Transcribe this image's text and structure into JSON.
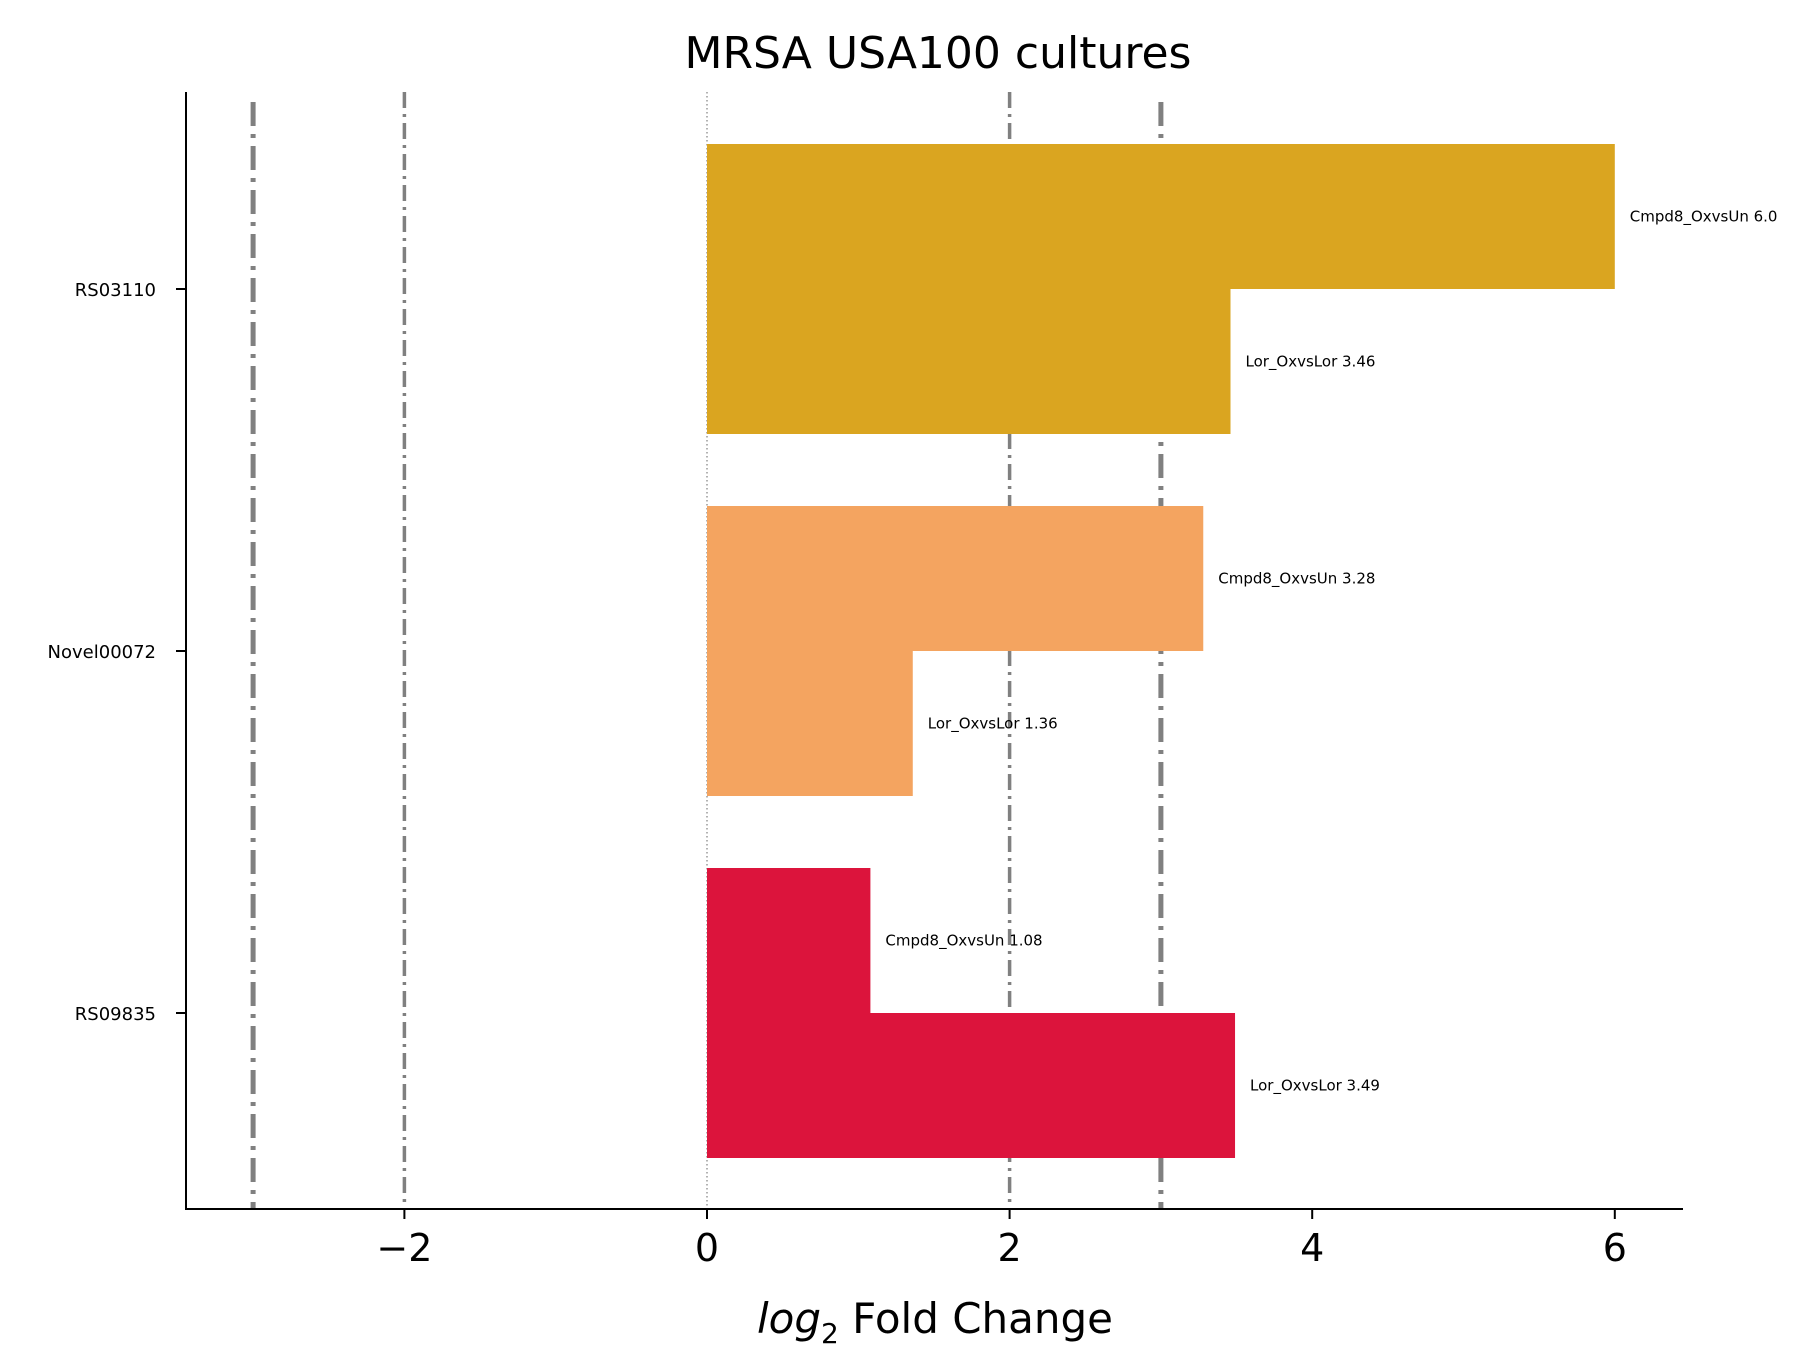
{
  "chart_data": {
    "type": "bar",
    "orientation": "horizontal",
    "title": "MRSA USA100 cultures",
    "xlabel_italic": "log",
    "xlabel_sub": "2",
    "xlabel_rest": " Fold Change",
    "xlim": [
      -3.4,
      6.45
    ],
    "xticks": [
      -2,
      0,
      2,
      4,
      6
    ],
    "xtick_labels": [
      "−2",
      "0",
      "2",
      "4",
      "6"
    ],
    "grid": false,
    "reference_lines": [
      {
        "x": -3,
        "style": "dashdot",
        "heavy": true
      },
      {
        "x": -2,
        "style": "dashdot",
        "heavy": false
      },
      {
        "x": 0,
        "style": "dotted",
        "heavy": false
      },
      {
        "x": 2,
        "style": "dashdot",
        "heavy": false
      },
      {
        "x": 3,
        "style": "dashdot",
        "heavy": true
      }
    ],
    "categories": [
      "RS03110",
      "Novel00072",
      "RS09835"
    ],
    "groups": [
      {
        "gene": "RS03110",
        "color": "#DAA520",
        "bars": [
          {
            "label": "Cmpd8_OxvsUn 6.0",
            "value": 6.0
          },
          {
            "label": "Lor_OxvsLor 3.46",
            "value": 3.46
          }
        ]
      },
      {
        "gene": "Novel00072",
        "color": "#F4A460",
        "bars": [
          {
            "label": "Cmpd8_OxvsUn 3.28",
            "value": 3.28
          },
          {
            "label": "Lor_OxvsLor 1.36",
            "value": 1.36
          }
        ]
      },
      {
        "gene": "RS09835",
        "color": "#DC143C",
        "bars": [
          {
            "label": "Cmpd8_OxvsUn 1.08",
            "value": 1.08
          },
          {
            "label": "Lor_OxvsLor 3.49",
            "value": 3.49
          }
        ]
      }
    ]
  }
}
